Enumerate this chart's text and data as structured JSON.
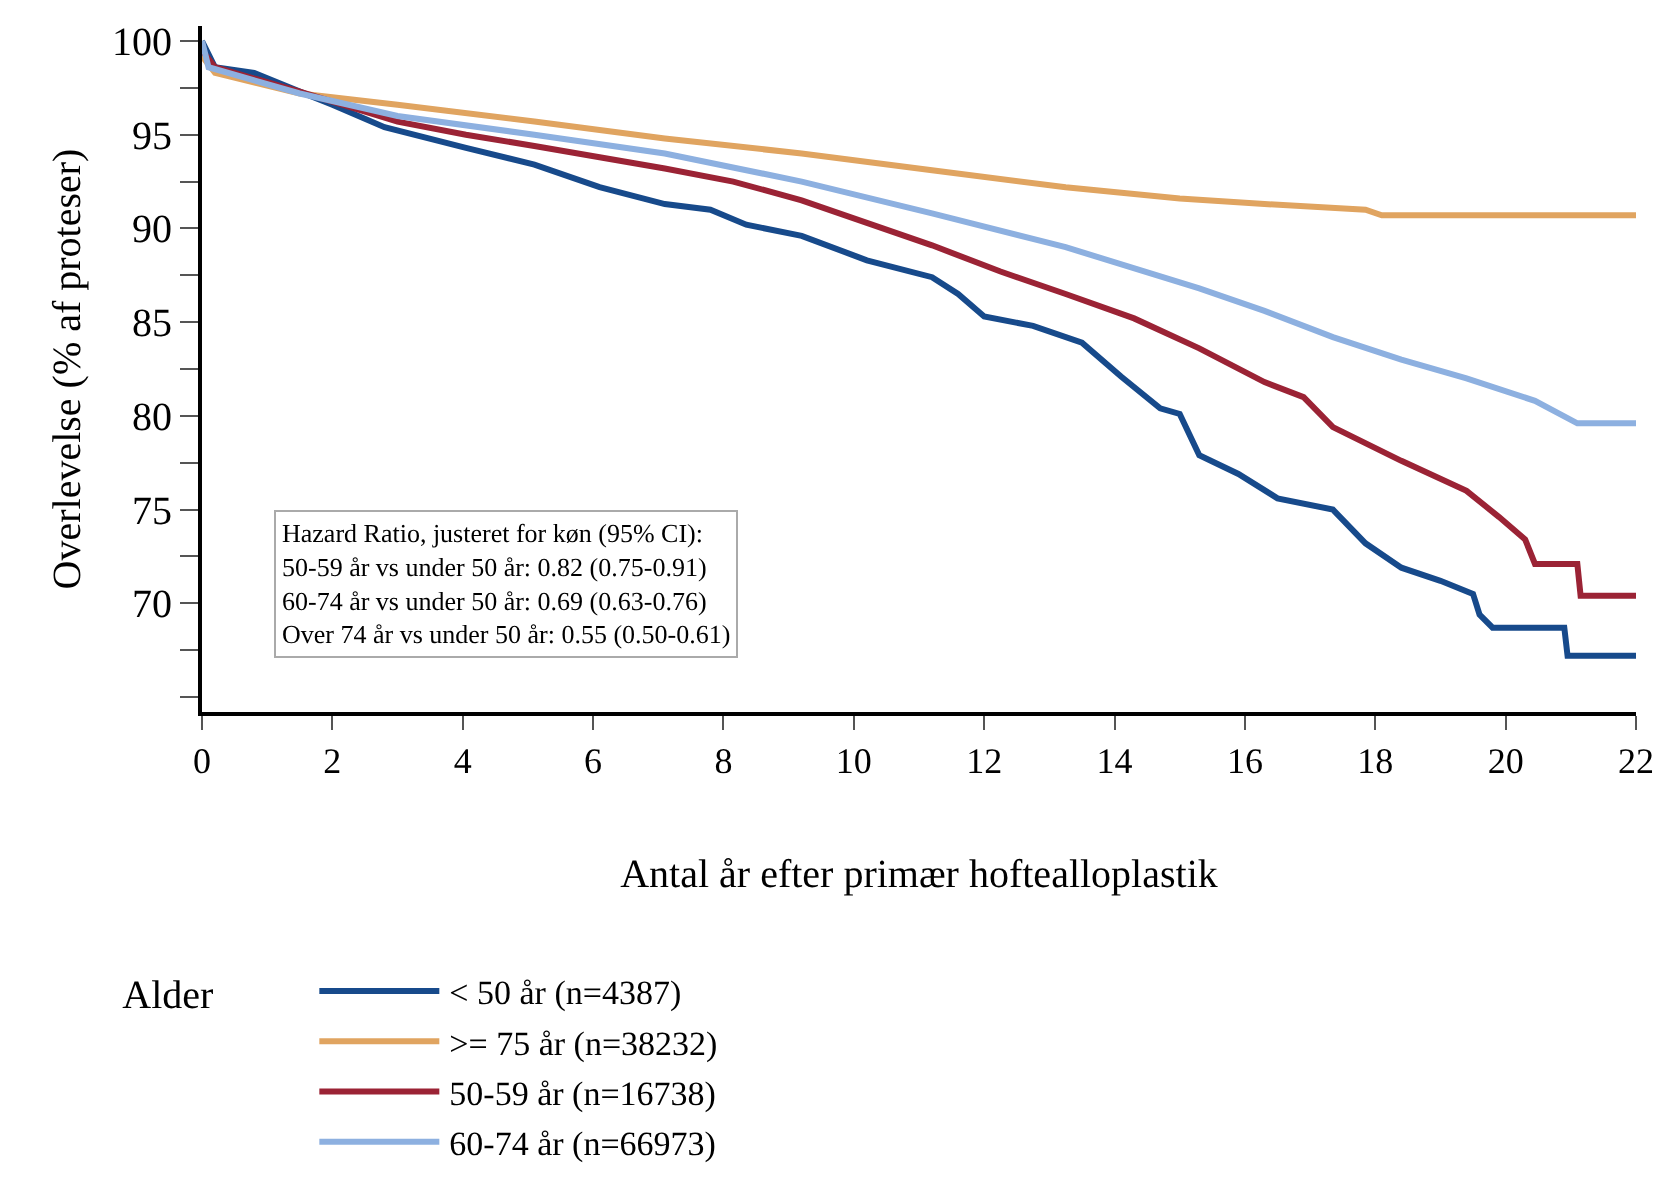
{
  "chart_data": {
    "type": "line",
    "xlabel": "Antal år efter primær hoftealloplastik",
    "ylabel": "Overlevelse (% af proteser)",
    "legend_title": "Alder",
    "legend": "bottom",
    "grid": false,
    "marker": "none",
    "line_style": "solid",
    "xlim": [
      0,
      22
    ],
    "xticks": [
      0,
      2,
      4,
      6,
      8,
      10,
      12,
      14,
      16,
      18,
      20,
      22
    ],
    "ylim": [
      64.2,
      100.8
    ],
    "yticks": [
      {
        "value": 65,
        "label": null
      },
      {
        "value": 67.5,
        "label": null
      },
      70,
      {
        "value": 72.5,
        "label": null
      },
      75,
      {
        "value": 77.5,
        "label": null
      },
      80,
      {
        "value": 82.5,
        "label": null
      },
      85,
      {
        "value": 87.5,
        "label": null
      },
      90,
      {
        "value": 92.5,
        "label": null
      },
      95,
      {
        "value": 97.5,
        "label": null
      },
      100
    ],
    "annotations": [
      "Hazard Ratio, justeret for køn (95% CI):\n50-59 år vs under 50 år: 0.82 (0.75-0.91)\n60-74 år vs under 50 år: 0.69 (0.63-0.76)\nOver 74 år vs under 50 år: 0.55 (0.50-0.61)"
    ],
    "series": [
      {
        "name": "< 50 år (n=4387)",
        "color": "#174a8b",
        "x": [
          0,
          0.2,
          0.8,
          1.5,
          2.0,
          2.8,
          4.05,
          5.1,
          6.1,
          7.1,
          7.8,
          8.35,
          9.2,
          10.2,
          11.2,
          11.6,
          12.0,
          12.75,
          13.5,
          14.1,
          14.7,
          15.0,
          15.3,
          15.9,
          16.5,
          17.35,
          17.85,
          18.4,
          19.0,
          19.5,
          19.6,
          19.8,
          20.9,
          20.95,
          22
        ],
        "values": [
          100,
          98.6,
          98.3,
          97.3,
          96.6,
          95.4,
          94.3,
          93.4,
          92.2,
          91.3,
          91.0,
          90.2,
          89.6,
          88.3,
          87.4,
          86.5,
          85.3,
          84.8,
          83.9,
          82.1,
          80.4,
          80.1,
          77.9,
          76.9,
          75.6,
          75.0,
          73.2,
          71.9,
          71.2,
          70.5,
          69.4,
          68.7,
          68.7,
          67.2,
          67.2
        ]
      },
      {
        "name": ">= 75 år (n=38232)",
        "color": "#e0a460",
        "x": [
          0,
          0.2,
          1.5,
          3.0,
          5.1,
          7.1,
          9.2,
          11.2,
          13.25,
          15.0,
          16.3,
          17.85,
          18.1,
          22
        ],
        "values": [
          99.2,
          98.3,
          97.2,
          96.6,
          95.7,
          94.8,
          94.0,
          93.1,
          92.2,
          91.6,
          91.3,
          91.0,
          90.7,
          90.7
        ]
      },
      {
        "name": "50-59 år (n=16738)",
        "color": "#9b2335",
        "x": [
          0,
          0.2,
          1.5,
          3.0,
          4.05,
          5.1,
          6.1,
          7.1,
          8.15,
          9.2,
          10.2,
          11.2,
          12.25,
          13.25,
          14.3,
          15.3,
          16.3,
          16.9,
          17.35,
          18.4,
          19.4,
          19.9,
          20.3,
          20.45,
          21.1,
          21.15,
          22
        ],
        "values": [
          99.5,
          98.6,
          97.3,
          95.7,
          95.0,
          94.4,
          93.8,
          93.2,
          92.5,
          91.5,
          90.3,
          89.1,
          87.7,
          86.5,
          85.2,
          83.6,
          81.8,
          81.0,
          79.4,
          77.6,
          76.0,
          74.6,
          73.4,
          72.1,
          72.1,
          70.4,
          70.4
        ]
      },
      {
        "name": "60-74 år (n=66973)",
        "color": "#8db0e0",
        "x": [
          0,
          0.1,
          1.5,
          3.0,
          5.1,
          7.1,
          9.2,
          11.2,
          13.25,
          15.3,
          16.3,
          17.35,
          18.4,
          19.4,
          20.45,
          21.1,
          22
        ],
        "values": [
          100,
          98.6,
          97.2,
          96.0,
          95.0,
          94.0,
          92.5,
          90.8,
          89.0,
          86.8,
          85.6,
          84.2,
          83.0,
          82.0,
          80.8,
          79.6,
          79.6
        ]
      }
    ]
  }
}
